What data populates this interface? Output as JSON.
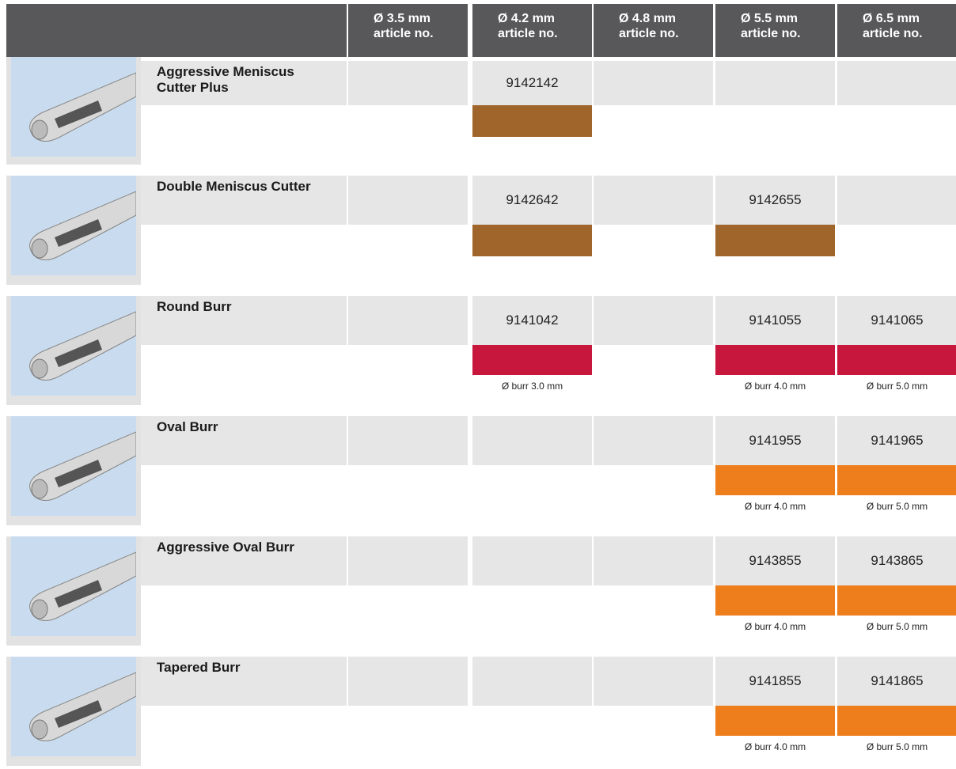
{
  "columns": [
    {
      "size": "Ø 3.5 mm",
      "label": "article no."
    },
    {
      "size": "Ø 4.2 mm",
      "label": "article no."
    },
    {
      "size": "Ø 4.8 mm",
      "label": "article no."
    },
    {
      "size": "Ø 5.5 mm",
      "label": "article no."
    },
    {
      "size": "Ø 6.5 mm",
      "label": "article no."
    }
  ],
  "rows": [
    {
      "name": "Aggressive Meniscus Cutter Plus",
      "cells": [
        null,
        {
          "article": "9142142",
          "color": "#a0652b"
        },
        null,
        null,
        null
      ]
    },
    {
      "name": "Double Meniscus Cutter",
      "cells": [
        null,
        {
          "article": "9142642",
          "color": "#a0652b"
        },
        null,
        {
          "article": "9142655",
          "color": "#a0652b"
        },
        null
      ]
    },
    {
      "name": "Round Burr",
      "cells": [
        null,
        {
          "article": "9141042",
          "color": "#c8173c",
          "note": "Ø burr 3.0 mm"
        },
        null,
        {
          "article": "9141055",
          "color": "#c8173c",
          "note": "Ø burr 4.0 mm"
        },
        {
          "article": "9141065",
          "color": "#c8173c",
          "note": "Ø burr 5.0 mm"
        }
      ]
    },
    {
      "name": "Oval Burr",
      "cells": [
        null,
        null,
        null,
        {
          "article": "9141955",
          "color": "#ee7d1b",
          "note": "Ø burr 4.0 mm"
        },
        {
          "article": "9141965",
          "color": "#ee7d1b",
          "note": "Ø burr 5.0 mm"
        }
      ]
    },
    {
      "name": "Aggressive Oval Burr",
      "cells": [
        null,
        null,
        null,
        {
          "article": "9143855",
          "color": "#ee7d1b",
          "note": "Ø burr 4.0 mm"
        },
        {
          "article": "9143865",
          "color": "#ee7d1b",
          "note": "Ø burr 5.0 mm"
        }
      ]
    },
    {
      "name": "Tapered Burr",
      "cells": [
        null,
        null,
        null,
        {
          "article": "9141855",
          "color": "#ee7d1b",
          "note": "Ø burr 4.0 mm"
        },
        {
          "article": "9141865",
          "color": "#ee7d1b",
          "note": "Ø burr 5.0 mm"
        }
      ]
    }
  ]
}
